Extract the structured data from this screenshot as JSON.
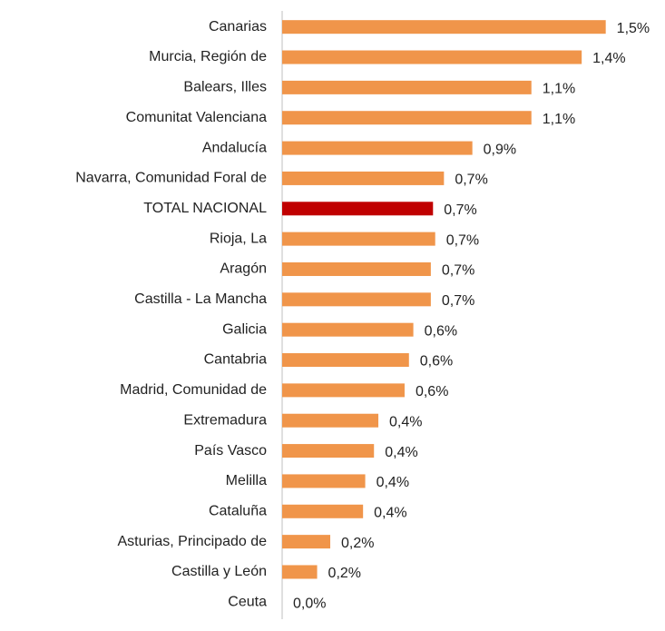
{
  "chart_data": {
    "type": "bar",
    "orientation": "horizontal",
    "categories": [
      "Canarias",
      "Murcia, Región de",
      "Balears, Illes",
      "Comunitat Valenciana",
      "Andalucía",
      "Navarra, Comunidad Foral de",
      "TOTAL NACIONAL",
      "Rioja, La",
      "Aragón",
      "Castilla - La Mancha",
      "Galicia",
      "Cantabria",
      "Madrid, Comunidad de",
      "Extremadura",
      "País Vasco",
      "Melilla",
      "Cataluña",
      "Asturias, Principado de",
      "Castilla y León",
      "Ceuta"
    ],
    "values": [
      1.48,
      1.37,
      1.14,
      1.14,
      0.87,
      0.74,
      0.69,
      0.7,
      0.68,
      0.68,
      0.6,
      0.58,
      0.56,
      0.44,
      0.42,
      0.38,
      0.37,
      0.22,
      0.16,
      0
    ],
    "value_labels": [
      "1,5%",
      "1,4%",
      "1,1%",
      "1,1%",
      "0,9%",
      "0,7%",
      "0,7%",
      "0,7%",
      "0,7%",
      "0,7%",
      "0,6%",
      "0,6%",
      "0,6%",
      "0,4%",
      "0,4%",
      "0,4%",
      "0,4%",
      "0,2%",
      "0,2%",
      "0,0%"
    ],
    "colors": [
      "#f0954a",
      "#f0954a",
      "#f0954a",
      "#f0954a",
      "#f0954a",
      "#f0954a",
      "#c00000",
      "#f0954a",
      "#f0954a",
      "#f0954a",
      "#f0954a",
      "#f0954a",
      "#f0954a",
      "#f0954a",
      "#f0954a",
      "#f0954a",
      "#f0954a",
      "#f0954a",
      "#f0954a",
      "#f0954a"
    ],
    "xlim": [
      0,
      1.6
    ]
  }
}
